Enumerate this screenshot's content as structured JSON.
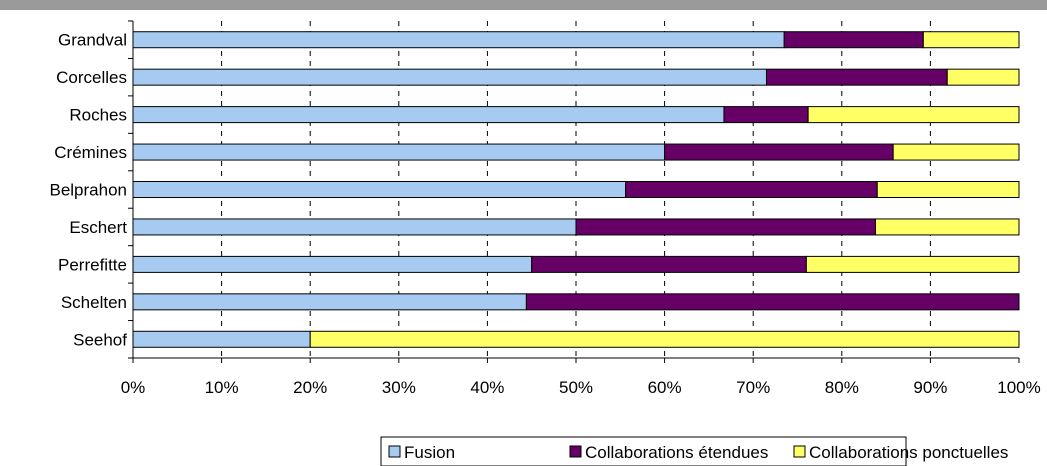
{
  "chart_data": {
    "type": "bar",
    "orientation": "horizontal",
    "stacked": "percent",
    "categories": [
      "Grandval",
      "Corcelles",
      "Roches",
      "Crémines",
      "Belprahon",
      "Eschert",
      "Perrefitte",
      "Schelten",
      "Seehof"
    ],
    "series": [
      {
        "name": "Fusion",
        "color": "#a6caf0",
        "values": [
          73.5,
          71.5,
          66.7,
          60.0,
          55.6,
          50.0,
          45.0,
          44.4,
          20.0
        ]
      },
      {
        "name": "Collaborations étendues",
        "color": "#660066",
        "values": [
          15.7,
          20.4,
          9.5,
          25.8,
          28.4,
          33.8,
          31.0,
          55.6,
          0.0
        ]
      },
      {
        "name": "Collaborations ponctuelles",
        "color": "#ffff66",
        "values": [
          10.8,
          8.1,
          23.8,
          14.2,
          16.0,
          16.2,
          24.0,
          0.0,
          80.0
        ]
      }
    ],
    "xlim": [
      0,
      100
    ],
    "xticks": [
      "0%",
      "10%",
      "20%",
      "30%",
      "40%",
      "50%",
      "60%",
      "70%",
      "80%",
      "90%",
      "100%"
    ],
    "grid": "vertical dashed",
    "legend": "bottom-center",
    "title": "",
    "xlabel": "",
    "ylabel": ""
  }
}
